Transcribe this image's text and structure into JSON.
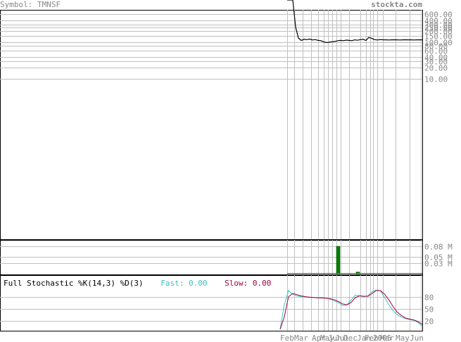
{
  "header": {
    "symbol_label": "Symbol: TMNSF",
    "site_label": "stockta.com"
  },
  "colors": {
    "price_line": "#000000",
    "grid": "#c0c0c0",
    "volume_bar": "#008000",
    "fast_line": "#40c0c0",
    "slow_line": "#a00040",
    "text_gray": "#888888"
  },
  "chart_data": [
    {
      "type": "line",
      "panel": "price",
      "scale": "log",
      "y_tick_labels": [
        "600.00",
        "400.00",
        "300.00",
        "250.00",
        "200.00",
        "150.00",
        "100.00",
        "80.00",
        "60.00",
        "40.00",
        "30.00",
        "20.00",
        "10.00"
      ],
      "y_tick_values": [
        600,
        400,
        300,
        250,
        200,
        150,
        100,
        80,
        60,
        40,
        30,
        20,
        10
      ],
      "x_tick_labels": [
        "Feb",
        "Mar",
        "Apr",
        "May",
        "Jun",
        "Jul",
        "Dec",
        "Jan",
        "Feb",
        "2005",
        "Mar",
        "May",
        "Jun"
      ],
      "x": [
        0,
        1,
        2,
        3,
        4,
        5,
        6,
        7,
        8,
        9,
        10,
        11,
        12,
        13,
        14,
        15,
        16,
        17,
        18,
        19,
        20,
        21,
        22,
        23,
        24,
        25,
        26,
        27,
        28,
        29,
        30,
        31,
        32,
        33,
        34,
        35,
        36,
        37,
        38,
        39,
        40,
        41,
        42,
        43,
        44,
        45,
        46,
        47,
        48
      ],
      "values": [
        40000,
        30000,
        2000,
        260,
        130,
        112,
        120,
        118,
        122,
        115,
        118,
        112,
        110,
        102,
        98,
        100,
        103,
        105,
        110,
        112,
        110,
        114,
        112,
        110,
        116,
        113,
        118,
        120,
        112,
        135,
        128,
        118,
        115,
        118,
        117,
        116,
        115,
        116,
        117,
        116,
        115,
        116,
        117,
        116,
        116,
        115,
        116,
        116,
        116
      ],
      "grid": true
    },
    {
      "type": "bar",
      "panel": "volume",
      "y_tick_labels": [
        "0.08 M",
        "0.05 M",
        "0.03 M"
      ],
      "y_tick_values": [
        0.08,
        0.05,
        0.03
      ],
      "bars": [
        {
          "index": 18,
          "value": 0.08
        },
        {
          "index": 25,
          "value": 0.005
        }
      ],
      "baseline_value": 0.002
    },
    {
      "type": "line",
      "panel": "stochastic",
      "title": "Full Stochastic %K(14,3) %D(3)",
      "fast_label": "Fast: 0.00",
      "slow_label": "Slow: 0.00",
      "y_tick_labels": [
        "80",
        "50",
        "20"
      ],
      "y_tick_values": [
        80,
        50,
        20
      ],
      "ylim": [
        0,
        100
      ],
      "series": [
        {
          "name": "Fast",
          "values": [
            0,
            60,
            95,
            86,
            82,
            80,
            79,
            78,
            78,
            77,
            77,
            76,
            74,
            70,
            65,
            58,
            60,
            72,
            84,
            82,
            80,
            82,
            92,
            96,
            94,
            78,
            60,
            46,
            36,
            30,
            26,
            24,
            22,
            16,
            8
          ]
        },
        {
          "name": "Slow",
          "values": [
            0,
            30,
            80,
            88,
            85,
            82,
            80,
            79,
            78,
            77,
            77,
            76,
            75,
            72,
            68,
            62,
            60,
            66,
            78,
            82,
            81,
            81,
            88,
            95,
            95,
            86,
            72,
            56,
            42,
            34,
            28,
            25,
            23,
            19,
            12
          ]
        }
      ]
    }
  ]
}
